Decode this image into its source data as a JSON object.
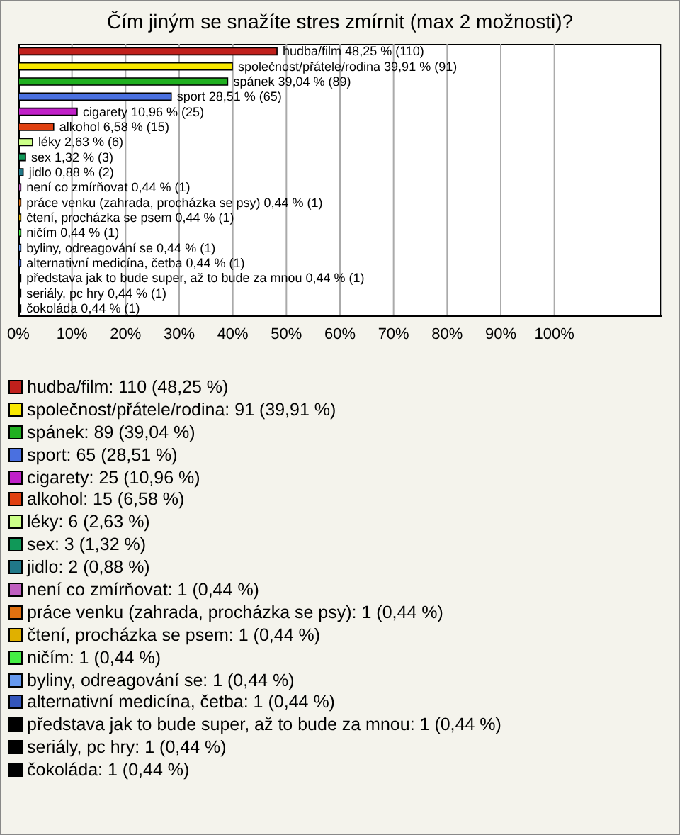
{
  "chart_data": {
    "type": "bar",
    "orientation": "horizontal",
    "title": "Čím jiným se snažíte stres zmírnit (max 2 možnosti)?",
    "categories": [
      "hudba/film",
      "společnost/přátele/rodina",
      "spánek",
      "sport",
      "cigarety",
      "alkohol",
      "léky",
      "sex",
      "jidlo",
      "není co zmírňovat",
      "práce venku (zahrada, procházka se psy)",
      "čtení, procházka se psem",
      "ničím",
      "byliny, odreagování se",
      "alternativní medicína, četba",
      "představa jak to bude super, až to bude za mnou",
      "seriály, pc hry",
      "čokoláda"
    ],
    "values": [
      48.25,
      39.91,
      39.04,
      28.51,
      10.96,
      6.58,
      2.63,
      1.32,
      0.88,
      0.44,
      0.44,
      0.44,
      0.44,
      0.44,
      0.44,
      0.44,
      0.44,
      0.44
    ],
    "value_labels": [
      "48,25 % (110)",
      "39,91 % (91)",
      "39,04 % (89)",
      "28,51 % (65)",
      "10,96 % (25)",
      "6,58 % (15)",
      "2,63 % (6)",
      "1,32 % (3)",
      "0,88 % (2)",
      "0,44 % (1)",
      "0,44 % (1)",
      "0,44 % (1)",
      "0,44 % (1)",
      "0,44 % (1)",
      "0,44 % (1)",
      "0,44 % (1)",
      "0,44 % (1)",
      "0,44 % (1)"
    ],
    "colors": [
      "#c0201c",
      "#f8e800",
      "#20b020",
      "#4a70e0",
      "#c020c8",
      "#e04010",
      "#ccff88",
      "#109858",
      "#207888",
      "#c060c0",
      "#e07010",
      "#e0b000",
      "#44ee44",
      "#6699ee",
      "#3355bb",
      "#000000",
      "#000000",
      "#000000"
    ],
    "annotations": [
      "hudba/film: 110 (48,25 %)",
      "společnost/přátele/rodina: 91 (39,91 %)",
      "spánek: 89 (39,04 %)",
      "sport: 65 (28,51 %)",
      "cigarety: 25 (10,96 %)",
      "alkohol: 15 (6,58 %)",
      "léky: 6 (2,63 %)",
      "sex: 3 (1,32 %)",
      "jidlo: 2 (0,88 %)",
      "není co zmírňovat: 1 (0,44 %)",
      "práce venku (zahrada, procházka se psy): 1 (0,44 %)",
      "čtení, procházka se psem: 1 (0,44 %)",
      "ničím: 1 (0,44 %)",
      "byliny, odreagování se: 1 (0,44 %)",
      "alternativní medicína, četba: 1 (0,44 %)",
      "představa jak to bude super, až to bude za mnou: 1 (0,44 %)",
      "seriály, pc hry: 1 (0,44 %)",
      "čokoláda: 1 (0,44 %)"
    ],
    "xlim": [
      0,
      120
    ],
    "xticks": [
      {
        "value": 0,
        "label": "0%"
      },
      {
        "value": 10,
        "label": "10%"
      },
      {
        "value": 20,
        "label": "20%"
      },
      {
        "value": 30,
        "label": "30%"
      },
      {
        "value": 40,
        "label": "40%"
      },
      {
        "value": 50,
        "label": "50%"
      },
      {
        "value": 60,
        "label": "60%"
      },
      {
        "value": 70,
        "label": "70%"
      },
      {
        "value": 80,
        "label": "80%"
      },
      {
        "value": 90,
        "label": "90%"
      },
      {
        "value": 100,
        "label": "100%"
      }
    ],
    "grid": "x",
    "tick_labels": "x"
  }
}
